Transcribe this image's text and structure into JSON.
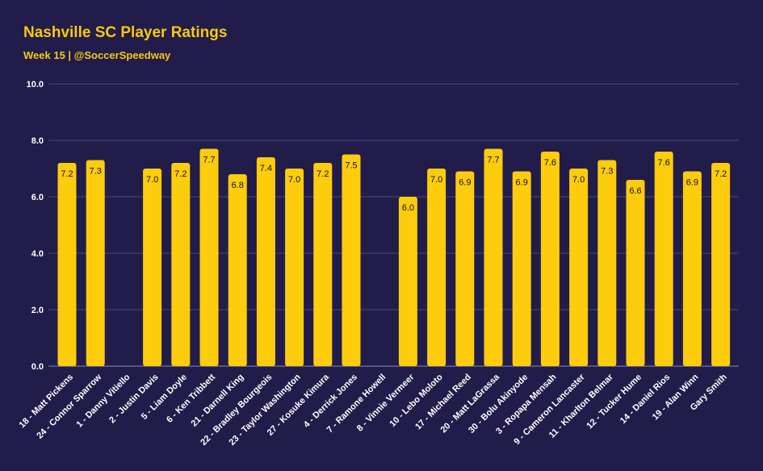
{
  "title": "Nashville SC Player Ratings",
  "subtitle": "Week 15  |  @SoccerSpeedway",
  "colors": {
    "background": "#211c4a",
    "bar": "#fdcc0d",
    "title": "#f9c80e"
  },
  "chart_data": {
    "type": "bar",
    "title": "Nashville SC Player Ratings",
    "subtitle": "Week 15  |  @SoccerSpeedway",
    "xlabel": "",
    "ylabel": "",
    "ylim": [
      0,
      10
    ],
    "yticks": [
      "0.0",
      "2.0",
      "4.0",
      "6.0",
      "8.0",
      "10.0"
    ],
    "grid": true,
    "categories": [
      "18 - Matt Pickens",
      "24 - Connor Sparrow",
      "1 - Danny Vitiello",
      "2 - Justin Davis",
      "5 - Liam Doyle",
      "6 - Ken Tribbett",
      "21 - Darnell King",
      "22 - Bradley Bourgeois",
      "23 - Taylor Washington",
      "27 - Kosuke Kimura",
      "4 - Derrick Jones",
      "7 - Ramone Howell",
      "8 - Vinnie Vermeer",
      "10 - Lebo Moloto",
      "17 - Michael Reed",
      "20 - Matt LaGrassa",
      "30 - Bolu Akinyode",
      "3 - Ropapa Mensah",
      "9 - Cameron Lancaster",
      "11 - Kharlton Belmar",
      "12 - Tucker Hume",
      "14 - Daniel Rios",
      "19 - Alan Winn",
      "Gary Smith"
    ],
    "values": [
      7.2,
      7.3,
      null,
      7.0,
      7.2,
      7.7,
      6.8,
      7.4,
      7.0,
      7.2,
      7.5,
      null,
      6.0,
      7.0,
      6.9,
      7.7,
      6.9,
      7.6,
      7.0,
      7.3,
      6.6,
      7.6,
      6.9,
      7.2
    ],
    "data_labels": [
      "7.2",
      "7.3",
      "",
      "7.0",
      "7.2",
      "7.7",
      "6.8",
      "7.4",
      "7.0",
      "7.2",
      "7.5",
      "",
      "6.0",
      "7.0",
      "6.9",
      "7.7",
      "6.9",
      "7.6",
      "7.0",
      "7.3",
      "6.6",
      "7.6",
      "6.9",
      "7.2"
    ]
  }
}
